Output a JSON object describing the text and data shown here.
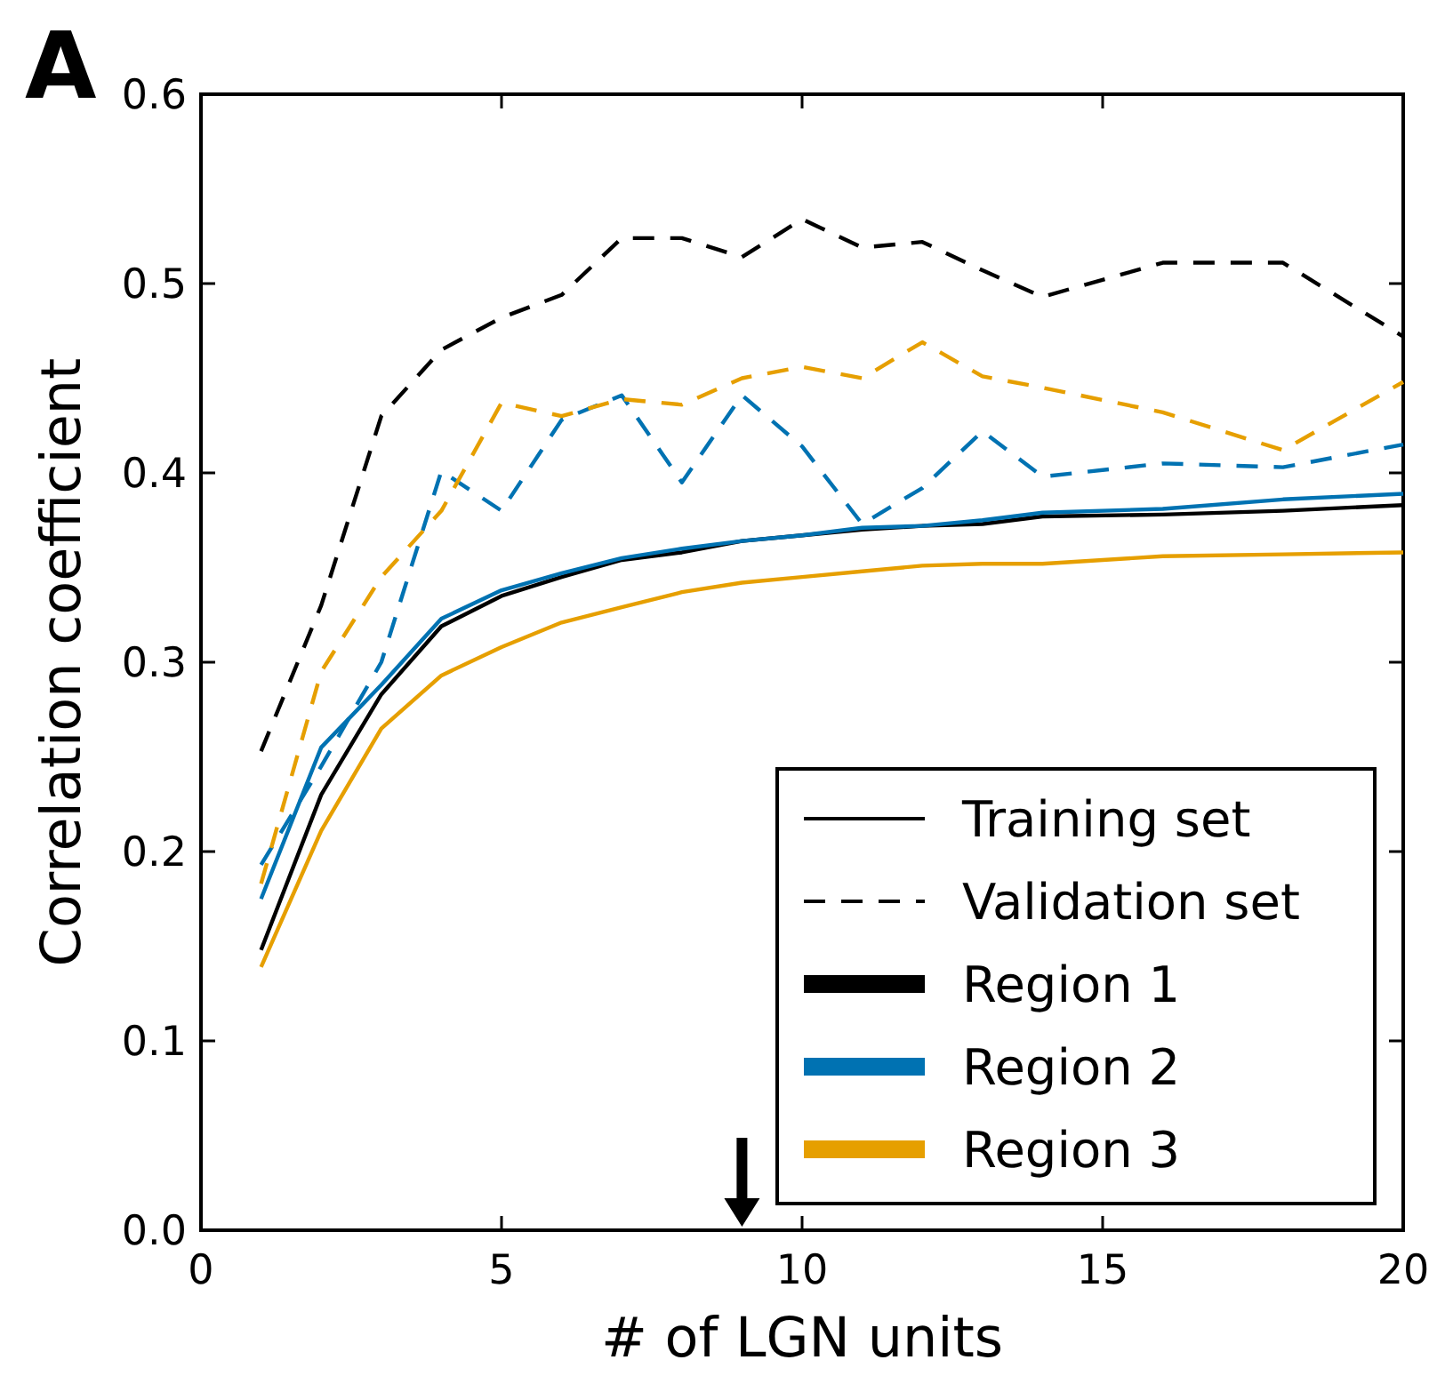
{
  "chart_data": {
    "type": "line",
    "xlabel": "# of LGN units",
    "ylabel": "Correlation coefficient",
    "x": [
      1,
      2,
      3,
      4,
      5,
      6,
      7,
      8,
      9,
      10,
      11,
      12,
      13,
      14,
      16,
      18,
      20
    ],
    "xlim": [
      0,
      20
    ],
    "xticks": [
      0,
      5,
      10,
      15,
      20
    ],
    "ylim": [
      0,
      0.6
    ],
    "yticks": [
      {
        "value": 0,
        "label": "0.0"
      },
      0.1,
      0.2,
      0.3,
      0.4,
      0.5,
      0.6
    ],
    "grid": false,
    "legend": "bottom right",
    "marker": "none",
    "series": [
      {
        "name": "Region 1",
        "color": "#000000",
        "line_style": "solid",
        "values": [
          0.148,
          0.23,
          0.283,
          0.319,
          0.335,
          0.345,
          0.354,
          0.358,
          0.364,
          0.367,
          0.37,
          0.372,
          0.373,
          0.377,
          0.378,
          0.38,
          0.383
        ]
      },
      {
        "name": "Region 2",
        "color": "#0072b2",
        "line_style": "solid",
        "values": [
          0.175,
          0.255,
          0.288,
          0.323,
          0.338,
          0.347,
          0.355,
          0.36,
          0.364,
          0.367,
          0.371,
          0.372,
          0.375,
          0.379,
          0.381,
          0.386,
          0.389
        ]
      },
      {
        "name": "Region 3",
        "color": "#e69f00",
        "line_style": "solid",
        "values": [
          0.139,
          0.211,
          0.265,
          0.293,
          0.308,
          0.321,
          0.329,
          0.337,
          0.342,
          0.345,
          0.348,
          0.351,
          0.352,
          0.352,
          0.356,
          0.357,
          0.358
        ]
      },
      {
        "color": "#000000",
        "line_style": "dashed",
        "values": [
          0.253,
          0.33,
          0.43,
          0.465,
          0.482,
          0.494,
          0.524,
          0.524,
          0.514,
          0.534,
          0.519,
          0.522,
          0.507,
          0.493,
          0.511,
          0.511,
          0.472
        ]
      },
      {
        "color": "#0072b2",
        "line_style": "dashed",
        "values": [
          0.193,
          0.245,
          0.3,
          0.401,
          0.38,
          0.428,
          0.441,
          0.395,
          0.441,
          0.414,
          0.373,
          0.392,
          0.422,
          0.398,
          0.405,
          0.403,
          0.415
        ]
      },
      {
        "color": "#e69f00",
        "line_style": "dashed",
        "values": [
          0.183,
          0.295,
          0.345,
          0.38,
          0.437,
          0.43,
          0.439,
          0.436,
          0.45,
          0.456,
          0.45,
          0.469,
          0.451,
          0.445,
          0.432,
          0.412,
          0.448
        ]
      }
    ],
    "annotations": [
      "A",
      "Training set",
      "Validation set"
    ]
  }
}
